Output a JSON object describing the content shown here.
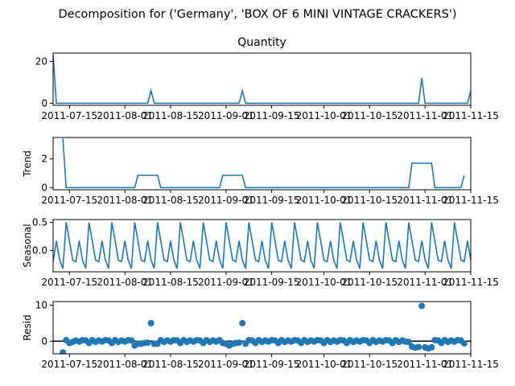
{
  "figure": {
    "suptitle": "Decomposition for ('Germany', 'BOX OF 6 MINI VINTAGE CRACKERS')",
    "line_color": "#1f77b4"
  },
  "x_axis": {
    "start": "2011-07-10",
    "end": "2011-11-15",
    "tick_labels": [
      "2011-07-15",
      "2011-08-01",
      "2011-08-15",
      "2011-09-01",
      "2011-09-15",
      "2011-10-01",
      "2011-10-15",
      "2011-11-01",
      "2011-11-15"
    ]
  },
  "chart_data": [
    {
      "type": "line",
      "title": "Quantity",
      "ylabel": "",
      "yticks": [
        0,
        20
      ],
      "ylim": [
        -1,
        24
      ],
      "x": [
        "2011-07-10",
        "2011-07-11",
        "2011-08-08",
        "2011-08-09",
        "2011-08-10",
        "2011-09-05",
        "2011-09-06",
        "2011-09-07",
        "2011-10-30",
        "2011-10-31",
        "2011-11-01",
        "2011-11-14",
        "2011-11-15"
      ],
      "values": [
        23,
        0,
        0,
        6,
        0,
        0,
        6,
        0,
        0,
        12,
        0,
        0,
        6
      ]
    },
    {
      "type": "line",
      "title": "",
      "ylabel": "Trend",
      "yticks": [
        0,
        2
      ],
      "ylim": [
        -0.15,
        3.5
      ],
      "x": [
        "2011-07-13",
        "2011-07-14",
        "2011-08-04",
        "2011-08-05",
        "2011-08-11",
        "2011-08-12",
        "2011-08-30",
        "2011-08-31",
        "2011-09-06",
        "2011-09-07",
        "2011-10-27",
        "2011-10-28",
        "2011-11-03",
        "2011-11-04",
        "2011-11-12",
        "2011-11-13"
      ],
      "values": [
        3.43,
        0,
        0,
        0.86,
        0.86,
        0,
        0,
        0.86,
        0.86,
        0,
        0,
        1.71,
        1.71,
        0,
        0,
        0.86
      ]
    },
    {
      "type": "line",
      "title": "",
      "ylabel": "Seasonal",
      "yticks": [
        0.0,
        0.5
      ],
      "ylim": [
        -0.38,
        0.55
      ],
      "period_start": "2011-07-10",
      "period": [
        -0.2,
        0.17,
        -0.17,
        -0.32,
        0.5,
        0.17,
        -0.17
      ]
    },
    {
      "type": "scatter",
      "title": "",
      "ylabel": "Resid",
      "yticks": [
        0,
        10
      ],
      "ylim": [
        -3.5,
        11
      ],
      "baseline": 0,
      "x": [
        "2011-07-13",
        "2011-07-14",
        "2011-07-15",
        "2011-07-16",
        "2011-07-17",
        "2011-07-18",
        "2011-07-19",
        "2011-07-20",
        "2011-07-21",
        "2011-07-22",
        "2011-07-23",
        "2011-07-24",
        "2011-07-25",
        "2011-07-26",
        "2011-07-27",
        "2011-07-28",
        "2011-07-29",
        "2011-07-30",
        "2011-07-31",
        "2011-08-01",
        "2011-08-02",
        "2011-08-03",
        "2011-08-04",
        "2011-08-05",
        "2011-08-06",
        "2011-08-07",
        "2011-08-08",
        "2011-08-09",
        "2011-08-10",
        "2011-08-11",
        "2011-08-12",
        "2011-08-13",
        "2011-08-14",
        "2011-08-15",
        "2011-08-16",
        "2011-08-17",
        "2011-08-18",
        "2011-08-19",
        "2011-08-20",
        "2011-08-21",
        "2011-08-22",
        "2011-08-23",
        "2011-08-24",
        "2011-08-25",
        "2011-08-26",
        "2011-08-27",
        "2011-08-28",
        "2011-08-29",
        "2011-08-30",
        "2011-08-31",
        "2011-09-01",
        "2011-09-02",
        "2011-09-03",
        "2011-09-04",
        "2011-09-05",
        "2011-09-06",
        "2011-09-07",
        "2011-09-08",
        "2011-09-09",
        "2011-09-10",
        "2011-09-11",
        "2011-09-12",
        "2011-09-13",
        "2011-09-14",
        "2011-09-15",
        "2011-09-16",
        "2011-09-17",
        "2011-09-18",
        "2011-09-19",
        "2011-09-20",
        "2011-09-21",
        "2011-09-22",
        "2011-09-23",
        "2011-09-24",
        "2011-09-25",
        "2011-09-26",
        "2011-09-27",
        "2011-09-28",
        "2011-09-29",
        "2011-09-30",
        "2011-10-01",
        "2011-10-02",
        "2011-10-03",
        "2011-10-04",
        "2011-10-05",
        "2011-10-06",
        "2011-10-07",
        "2011-10-08",
        "2011-10-09",
        "2011-10-10",
        "2011-10-11",
        "2011-10-12",
        "2011-10-13",
        "2011-10-14",
        "2011-10-15",
        "2011-10-16",
        "2011-10-17",
        "2011-10-18",
        "2011-10-19",
        "2011-10-20",
        "2011-10-21",
        "2011-10-22",
        "2011-10-23",
        "2011-10-24",
        "2011-10-25",
        "2011-10-26",
        "2011-10-27",
        "2011-10-28",
        "2011-10-29",
        "2011-10-30",
        "2011-10-31",
        "2011-11-01",
        "2011-11-02",
        "2011-11-03",
        "2011-11-04",
        "2011-11-05",
        "2011-11-06",
        "2011-11-07",
        "2011-11-08",
        "2011-11-09",
        "2011-11-10",
        "2011-11-11",
        "2011-11-12",
        "2011-11-13"
      ],
      "values": [
        -3.1,
        0.3,
        -0.5,
        -0.2,
        0.2,
        -0.1,
        0.3,
        0.2,
        -0.5,
        0.3,
        -0.2,
        0.2,
        -0.1,
        0.3,
        0.2,
        -0.5,
        0.3,
        -0.2,
        0.2,
        -0.1,
        0.3,
        0.2,
        -1.2,
        -0.7,
        -0.7,
        -0.5,
        -0.4,
        5.0,
        -0.7,
        -0.7,
        0.3,
        -0.2,
        0.2,
        -0.1,
        0.3,
        0.2,
        -0.5,
        0.3,
        -0.2,
        0.2,
        -0.1,
        0.3,
        0.2,
        -0.5,
        0.3,
        -0.2,
        0.2,
        -0.1,
        0.3,
        -0.5,
        -0.7,
        -1.2,
        -0.7,
        -0.5,
        -0.4,
        5.0,
        -0.7,
        0.3,
        0.2,
        -0.5,
        0.3,
        -0.2,
        0.2,
        -0.1,
        0.3,
        0.2,
        -0.5,
        0.3,
        -0.2,
        0.2,
        -0.1,
        0.3,
        0.2,
        -0.5,
        0.3,
        -0.2,
        0.2,
        -0.1,
        0.3,
        0.2,
        -0.5,
        0.3,
        -0.2,
        0.2,
        -0.1,
        0.3,
        0.2,
        -0.5,
        0.3,
        -0.2,
        0.2,
        -0.1,
        0.3,
        0.2,
        -0.5,
        0.3,
        -0.2,
        0.2,
        -0.1,
        0.3,
        0.2,
        -0.5,
        0.3,
        -0.2,
        0.2,
        -0.1,
        -0.2,
        -1.5,
        -1.8,
        -1.6,
        9.8,
        -1.7,
        -2.0,
        -1.7,
        0.3,
        0.2,
        -0.5,
        0.3,
        -0.2,
        0.2,
        -0.1,
        0.3,
        0.2,
        -0.6
      ]
    }
  ]
}
